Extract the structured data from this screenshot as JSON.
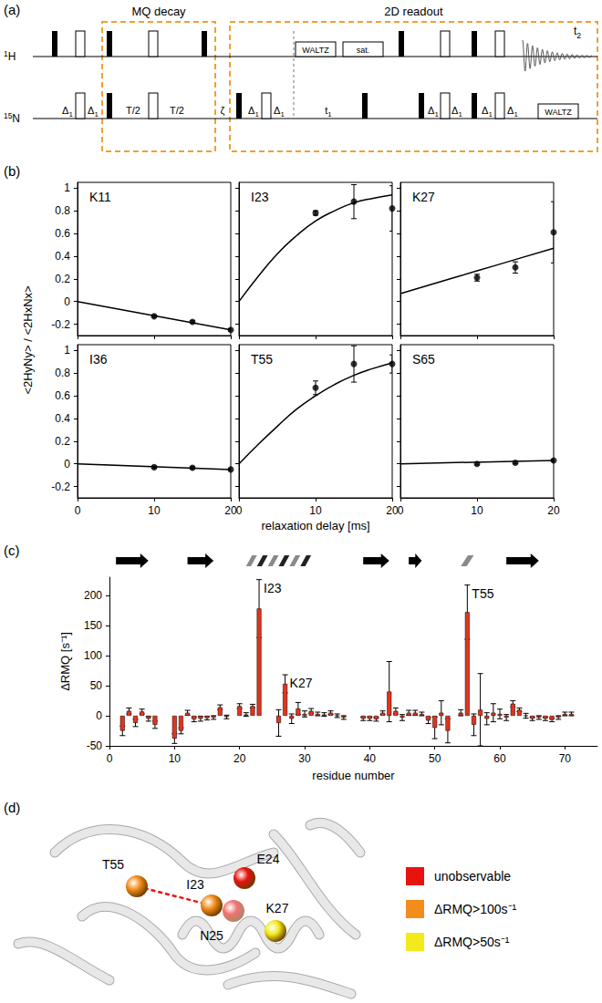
{
  "panel_labels": [
    "(a)",
    "(b)",
    "(c)",
    "(d)"
  ],
  "pulse_sequence": {
    "blocks": [
      {
        "label": "MQ decay"
      },
      {
        "label": "2D readout"
      }
    ],
    "channels": [
      {
        "label": "1H",
        "elements": [
          {
            "kind": "p90"
          },
          {
            "kind": "p180"
          },
          {
            "kind": "p90"
          },
          {
            "kind": "p180"
          },
          {
            "kind": "p90"
          },
          {
            "kind": "box",
            "label": "WALTZ"
          },
          {
            "kind": "box",
            "label": "sat."
          },
          {
            "kind": "p90"
          },
          {
            "kind": "p180"
          },
          {
            "kind": "p90"
          },
          {
            "kind": "p180"
          },
          {
            "kind": "fid",
            "label": "t2"
          }
        ]
      },
      {
        "label": "15N",
        "elements": [
          {
            "kind": "delay",
            "label": "Δ1"
          },
          {
            "kind": "p180"
          },
          {
            "kind": "delay",
            "label": "Δ1"
          },
          {
            "kind": "p90"
          },
          {
            "kind": "delay",
            "label": "T/2"
          },
          {
            "kind": "p180"
          },
          {
            "kind": "delay",
            "label": "T/2"
          },
          {
            "kind": "delay",
            "label": "ζ"
          },
          {
            "kind": "p90"
          },
          {
            "kind": "delay",
            "label": "Δ1"
          },
          {
            "kind": "p180"
          },
          {
            "kind": "delay",
            "label": "Δ1"
          },
          {
            "kind": "delay",
            "label": "t1"
          },
          {
            "kind": "p90"
          },
          {
            "kind": "p90"
          },
          {
            "kind": "delay",
            "label": "Δ1"
          },
          {
            "kind": "p180"
          },
          {
            "kind": "delay",
            "label": "Δ1"
          },
          {
            "kind": "p90"
          },
          {
            "kind": "delay",
            "label": "Δ1"
          },
          {
            "kind": "p180"
          },
          {
            "kind": "delay",
            "label": "Δ1"
          },
          {
            "kind": "box",
            "label": "WALTZ"
          }
        ]
      }
    ]
  },
  "shared_axes": {
    "xlabel": "relaxation delay [ms]",
    "ylabel": "<2HyNy> / <2HxNx>"
  },
  "chart_data": [
    {
      "type": "scatter",
      "title": "K11",
      "xlim": [
        0,
        20
      ],
      "xticks": [
        0,
        10,
        20
      ],
      "ylim": [
        -0.3,
        1.05
      ],
      "yticks": [
        -0.2,
        0,
        0.2,
        0.4,
        0.6,
        0.8,
        1
      ],
      "grid": false,
      "tick_labels": "y",
      "series": [
        {
          "type": "scatter",
          "x": [
            10,
            15,
            20
          ],
          "values": [
            -0.13,
            -0.18,
            -0.25
          ],
          "errors": [
            0.01,
            0.01,
            0.01
          ]
        },
        {
          "type": "line",
          "x": [
            0,
            20
          ],
          "values": [
            0,
            -0.25
          ]
        }
      ]
    },
    {
      "type": "scatter",
      "title": "I23",
      "xlim": [
        0,
        20
      ],
      "xticks": [
        0,
        10,
        20
      ],
      "ylim": [
        -0.3,
        1.05
      ],
      "yticks": [
        -0.2,
        0,
        0.2,
        0.4,
        0.6,
        0.8,
        1
      ],
      "grid": false,
      "tick_labels": false,
      "series": [
        {
          "type": "scatter",
          "x": [
            10,
            15,
            20
          ],
          "values": [
            0.78,
            0.88,
            0.82
          ],
          "errors": [
            0.02,
            0.15,
            0.2
          ]
        },
        {
          "type": "line",
          "x": [
            0,
            2.5,
            5,
            7.5,
            10,
            12.5,
            15,
            17.5,
            20
          ],
          "values": [
            0,
            0.22,
            0.42,
            0.58,
            0.71,
            0.8,
            0.87,
            0.91,
            0.94
          ]
        }
      ]
    },
    {
      "type": "scatter",
      "title": "K27",
      "xlim": [
        0,
        20
      ],
      "xticks": [
        0,
        10,
        20
      ],
      "ylim": [
        -0.3,
        1.05
      ],
      "yticks": [
        -0.2,
        0,
        0.2,
        0.4,
        0.6,
        0.8,
        1
      ],
      "grid": false,
      "tick_labels": false,
      "series": [
        {
          "type": "scatter",
          "x": [
            10,
            15,
            20
          ],
          "values": [
            0.21,
            0.3,
            0.61
          ],
          "errors": [
            0.03,
            0.05,
            0.27
          ]
        },
        {
          "type": "line",
          "x": [
            0,
            5,
            10,
            15,
            20
          ],
          "values": [
            0.07,
            0.17,
            0.27,
            0.37,
            0.47
          ]
        }
      ]
    },
    {
      "type": "scatter",
      "title": "I36",
      "xlim": [
        0,
        20
      ],
      "xticks": [
        0,
        10,
        20
      ],
      "ylim": [
        -0.3,
        1.05
      ],
      "yticks": [
        -0.2,
        0,
        0.2,
        0.4,
        0.6,
        0.8,
        1
      ],
      "grid": false,
      "tick_labels": true,
      "series": [
        {
          "type": "scatter",
          "x": [
            10,
            15,
            20
          ],
          "values": [
            -0.03,
            -0.035,
            -0.05
          ],
          "errors": [
            0.01,
            0.01,
            0.01
          ]
        },
        {
          "type": "line",
          "x": [
            0,
            20
          ],
          "values": [
            0,
            -0.05
          ]
        }
      ]
    },
    {
      "type": "scatter",
      "title": "T55",
      "xlim": [
        0,
        20
      ],
      "xticks": [
        0,
        10,
        20
      ],
      "ylim": [
        -0.3,
        1.05
      ],
      "yticks": [
        -0.2,
        0,
        0.2,
        0.4,
        0.6,
        0.8,
        1
      ],
      "grid": false,
      "tick_labels": "x",
      "series": [
        {
          "type": "scatter",
          "x": [
            10,
            15,
            20
          ],
          "values": [
            0.67,
            0.88,
            0.88
          ],
          "errors": [
            0.06,
            0.16,
            0.08
          ]
        },
        {
          "type": "line",
          "x": [
            0,
            2.5,
            5,
            7.5,
            10,
            12.5,
            15,
            17.5,
            20
          ],
          "values": [
            0,
            0.17,
            0.33,
            0.48,
            0.6,
            0.7,
            0.78,
            0.84,
            0.89
          ]
        }
      ]
    },
    {
      "type": "scatter",
      "title": "S65",
      "xlim": [
        0,
        20
      ],
      "xticks": [
        0,
        10,
        20
      ],
      "ylim": [
        -0.3,
        1.05
      ],
      "yticks": [
        -0.2,
        0,
        0.2,
        0.4,
        0.6,
        0.8,
        1
      ],
      "grid": false,
      "tick_labels": "x",
      "series": [
        {
          "type": "scatter",
          "x": [
            10,
            15,
            20
          ],
          "values": [
            0,
            0.01,
            0.03
          ],
          "errors": [
            0.01,
            0.01,
            0.01
          ]
        },
        {
          "type": "line",
          "x": [
            0,
            20
          ],
          "values": [
            0,
            0.03
          ]
        }
      ]
    },
    {
      "type": "bar",
      "xlabel": "residue number",
      "ylabel": "ΔRMQ [s⁻¹]",
      "color": "#e2341d",
      "grid": false,
      "xlim": [
        0,
        75
      ],
      "xticks": [
        0,
        10,
        20,
        30,
        40,
        50,
        60,
        70
      ],
      "ylim": [
        -50,
        230
      ],
      "yticks": [
        -50,
        0,
        50,
        100,
        150,
        200
      ],
      "x": [
        2,
        3,
        4,
        5,
        6,
        7,
        10,
        11,
        12,
        13,
        14,
        15,
        16,
        17,
        18,
        20,
        21,
        22,
        23,
        26,
        27,
        28,
        29,
        30,
        31,
        32,
        33,
        34,
        35,
        36,
        39,
        40,
        41,
        42,
        43,
        44,
        45,
        46,
        47,
        48,
        49,
        50,
        51,
        52,
        54,
        55,
        56,
        57,
        58,
        59,
        60,
        61,
        62,
        63,
        64,
        65,
        66,
        67,
        68,
        69,
        70,
        71
      ],
      "values": [
        -25,
        8,
        -12,
        7,
        -5,
        -15,
        -38,
        -25,
        5,
        -6,
        -5,
        -4,
        -3,
        14,
        -2,
        16,
        2,
        16,
        178,
        -12,
        53,
        -5,
        12,
        3,
        8,
        3,
        2,
        5,
        0,
        -3,
        -5,
        -5,
        -6,
        5,
        40,
        8,
        -3,
        5,
        5,
        3,
        -8,
        -20,
        5,
        -25,
        5,
        172,
        -15,
        10,
        -5,
        5,
        3,
        -3,
        20,
        10,
        0,
        -5,
        -3,
        -5,
        -7,
        -3,
        3,
        3
      ],
      "errors": [
        8,
        5,
        6,
        4,
        4,
        6,
        8,
        5,
        4,
        4,
        4,
        3,
        3,
        4,
        3,
        4,
        3,
        3,
        48,
        22,
        15,
        8,
        10,
        5,
        4,
        3,
        3,
        3,
        3,
        3,
        3,
        3,
        3,
        3,
        50,
        5,
        5,
        4,
        4,
        3,
        5,
        18,
        20,
        20,
        5,
        45,
        18,
        60,
        10,
        15,
        8,
        5,
        5,
        3,
        4,
        3,
        3,
        3,
        3,
        3,
        3,
        3
      ],
      "annotations": [
        {
          "text": "I23",
          "x": 23
        },
        {
          "text": "K27",
          "x": 27
        },
        {
          "text": "T55",
          "x": 55
        }
      ],
      "secondary_structure": [
        {
          "kind": "strand",
          "start": 1,
          "end": 6
        },
        {
          "kind": "strand",
          "start": 12,
          "end": 16
        },
        {
          "kind": "helix",
          "start": 21,
          "end": 31
        },
        {
          "kind": "strand",
          "start": 39,
          "end": 43
        },
        {
          "kind": "strand",
          "start": 46,
          "end": 48
        },
        {
          "kind": "helix",
          "start": 54,
          "end": 56
        },
        {
          "kind": "strand",
          "start": 61,
          "end": 66
        }
      ]
    }
  ],
  "structure": {
    "residues": [
      {
        "name": "T55",
        "class": "ΔRMQ>100s⁻¹"
      },
      {
        "name": "I23",
        "class": "ΔRMQ>100s⁻¹"
      },
      {
        "name": "E24",
        "class": "unobservable"
      },
      {
        "name": "N25",
        "class": "unobservable"
      },
      {
        "name": "K27",
        "class": "ΔRMQ>50s⁻¹"
      }
    ],
    "contacts": [
      [
        "T55",
        "I23"
      ]
    ],
    "legend": [
      {
        "label": "unobservable",
        "color": "#e8130e"
      },
      {
        "label": "ΔRMQ>100s⁻¹",
        "color": "#f28c1a"
      },
      {
        "label": "ΔRMQ>50s⁻¹",
        "color": "#f2ea1c"
      }
    ]
  }
}
